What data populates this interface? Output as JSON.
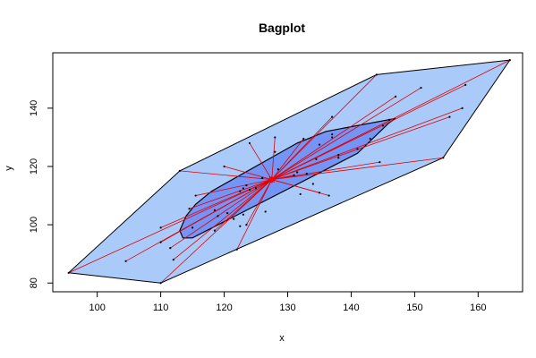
{
  "chart_data": {
    "type": "scatter",
    "title": "Bagplot",
    "xlabel": "x",
    "ylabel": "y",
    "xlim": [
      93,
      167
    ],
    "ylim": [
      77,
      159
    ],
    "x_ticks": [
      100,
      110,
      120,
      130,
      140,
      150,
      160
    ],
    "y_ticks": [
      80,
      100,
      120,
      140
    ],
    "x_tick_labels": [
      "100",
      "110",
      "120",
      "130",
      "140",
      "150",
      "160"
    ],
    "y_tick_labels": [
      "80",
      "100",
      "120",
      "140"
    ],
    "grid": false,
    "center": {
      "x": 127.5,
      "y": 115.5
    },
    "fence": [
      [
        95.5,
        83.5
      ],
      [
        110,
        80
      ],
      [
        154.5,
        123
      ],
      [
        165,
        156.5
      ],
      [
        144,
        151.5
      ],
      [
        113,
        118.5
      ]
    ],
    "bag": [
      [
        113.5,
        95.5
      ],
      [
        115,
        95.5
      ],
      [
        141,
        124.5
      ],
      [
        146,
        135
      ],
      [
        147,
        136.5
      ],
      [
        136,
        132
      ],
      [
        131.5,
        128
      ],
      [
        118,
        111.5
      ],
      [
        115.5,
        107
      ],
      [
        114,
        103
      ],
      [
        113,
        98
      ]
    ],
    "inner_points": [
      {
        "x": 115,
        "y": 99
      },
      {
        "x": 118.5,
        "y": 105
      },
      {
        "x": 119,
        "y": 103
      },
      {
        "x": 120.5,
        "y": 104
      },
      {
        "x": 121.5,
        "y": 102
      },
      {
        "x": 122.5,
        "y": 99.5
      },
      {
        "x": 123,
        "y": 103.5
      },
      {
        "x": 122.5,
        "y": 111.5
      },
      {
        "x": 123,
        "y": 112.5
      },
      {
        "x": 123.5,
        "y": 113.5
      },
      {
        "x": 124,
        "y": 112
      },
      {
        "x": 125,
        "y": 112.5
      },
      {
        "x": 126,
        "y": 116
      },
      {
        "x": 126.5,
        "y": 104.5
      },
      {
        "x": 128.5,
        "y": 119
      },
      {
        "x": 131.5,
        "y": 118
      },
      {
        "x": 132,
        "y": 110.5
      },
      {
        "x": 133,
        "y": 117.5
      },
      {
        "x": 134,
        "y": 114
      },
      {
        "x": 134.5,
        "y": 122.5
      },
      {
        "x": 135,
        "y": 127.5
      },
      {
        "x": 137,
        "y": 130
      },
      {
        "x": 137,
        "y": 131
      },
      {
        "x": 138,
        "y": 123
      },
      {
        "x": 138,
        "y": 124
      },
      {
        "x": 141,
        "y": 126
      },
      {
        "x": 143,
        "y": 129.5
      },
      {
        "x": 145,
        "y": 134
      },
      {
        "x": 146,
        "y": 136
      },
      {
        "x": 128,
        "y": 125
      }
    ],
    "outer_points": [
      {
        "x": 95.5,
        "y": 83.5
      },
      {
        "x": 104.5,
        "y": 87.5
      },
      {
        "x": 110,
        "y": 80
      },
      {
        "x": 110,
        "y": 94
      },
      {
        "x": 110,
        "y": 99
      },
      {
        "x": 111.5,
        "y": 92
      },
      {
        "x": 112,
        "y": 88
      },
      {
        "x": 113,
        "y": 118.5
      },
      {
        "x": 114.5,
        "y": 105.5
      },
      {
        "x": 115.5,
        "y": 110
      },
      {
        "x": 118.5,
        "y": 98
      },
      {
        "x": 120,
        "y": 120
      },
      {
        "x": 122,
        "y": 91.5
      },
      {
        "x": 123.5,
        "y": 100
      },
      {
        "x": 124,
        "y": 128
      },
      {
        "x": 128,
        "y": 130
      },
      {
        "x": 131,
        "y": 117
      },
      {
        "x": 132.5,
        "y": 129.5
      },
      {
        "x": 135,
        "y": 111
      },
      {
        "x": 136.5,
        "y": 110
      },
      {
        "x": 137,
        "y": 137
      },
      {
        "x": 144,
        "y": 151.5
      },
      {
        "x": 144.5,
        "y": 121.5
      },
      {
        "x": 147,
        "y": 144
      },
      {
        "x": 151,
        "y": 147
      },
      {
        "x": 154.5,
        "y": 123
      },
      {
        "x": 155.5,
        "y": 137
      },
      {
        "x": 157.5,
        "y": 140
      },
      {
        "x": 158,
        "y": 148
      },
      {
        "x": 165,
        "y": 156.5
      }
    ],
    "colors": {
      "fence_fill": "#aacbfa",
      "bag_fill": "#7494f6",
      "whisker": "#e00000",
      "point": "#000000",
      "center": "#ff0000",
      "outline": "#000000"
    }
  }
}
